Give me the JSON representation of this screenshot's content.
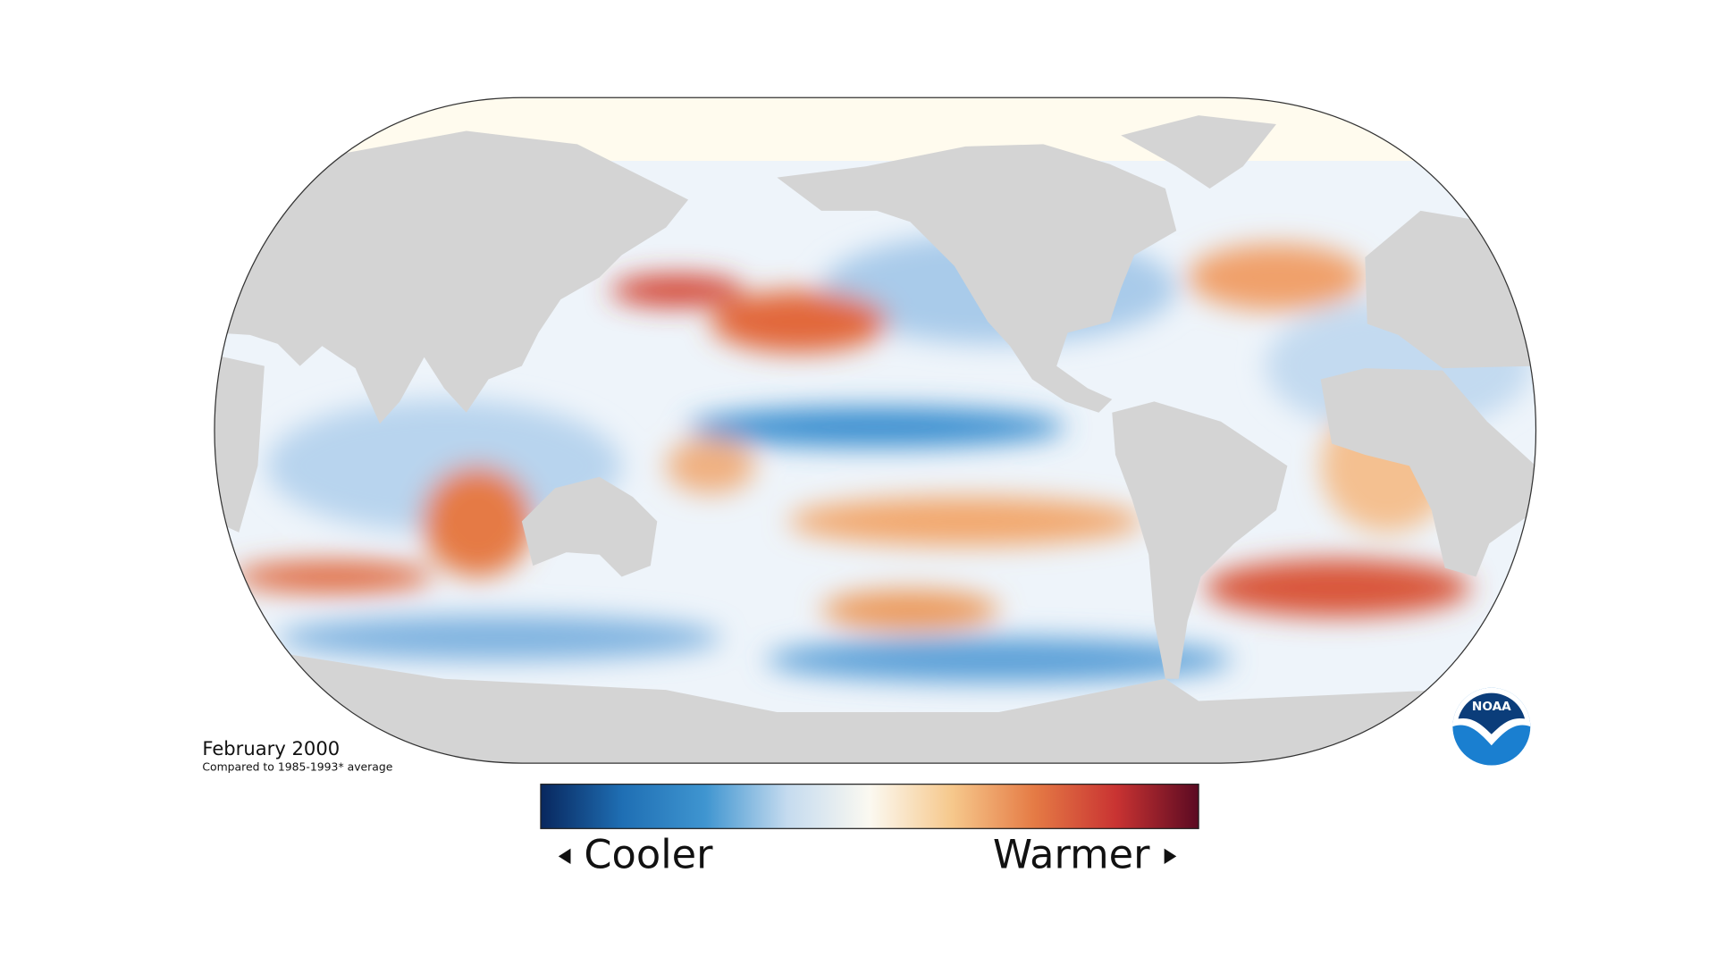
{
  "title": "February 2000",
  "subtitle": "Compared to 1985-1993* average",
  "legend": {
    "low_label": "Cooler",
    "high_label": "Warmer",
    "colors": [
      "#08275e",
      "#1f6fb4",
      "#3f95d0",
      "#c5dbef",
      "#fbf9f1",
      "#f6c88c",
      "#e57b45",
      "#c93332",
      "#5b0a22"
    ]
  },
  "logo": {
    "text": "NOAA"
  }
}
